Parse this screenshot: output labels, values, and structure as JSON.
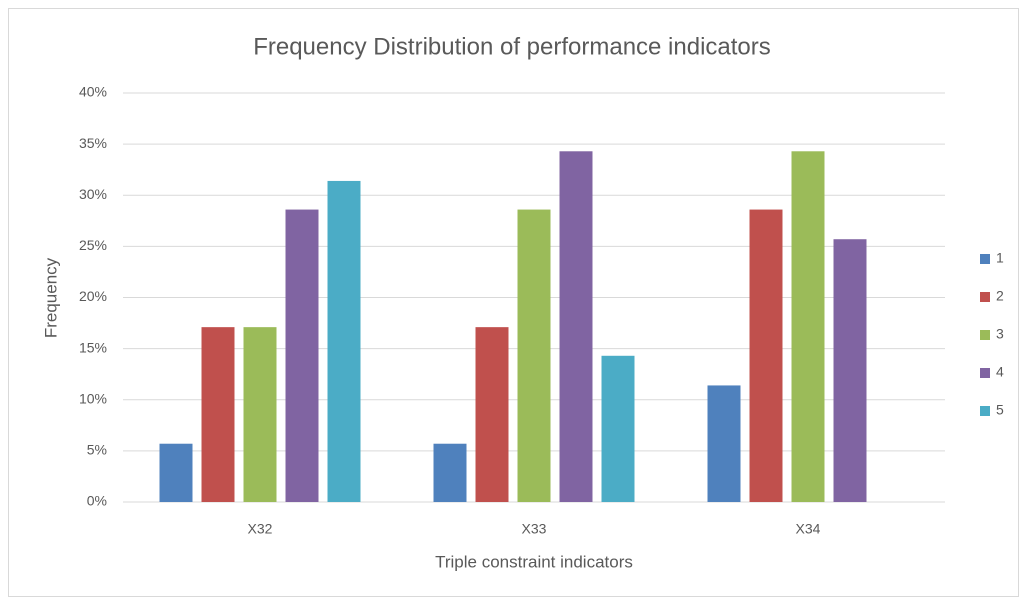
{
  "chart_data": {
    "type": "bar",
    "title": "Frequency Distribution of performance indicators",
    "xlabel": "Triple constraint indicators",
    "ylabel": "Frequency",
    "categories": [
      "X32",
      "X33",
      "X34"
    ],
    "series": [
      {
        "name": "1",
        "color": "#4f81bd",
        "values": [
          5.7,
          5.7,
          11.4
        ]
      },
      {
        "name": "2",
        "color": "#c0504d",
        "values": [
          17.1,
          17.1,
          28.6
        ]
      },
      {
        "name": "3",
        "color": "#9bbb59",
        "values": [
          17.1,
          28.6,
          34.3
        ]
      },
      {
        "name": "4",
        "color": "#8064a2",
        "values": [
          28.6,
          34.3,
          25.7
        ]
      },
      {
        "name": "5",
        "color": "#4bacc6",
        "values": [
          31.4,
          14.3,
          null
        ]
      }
    ],
    "ylim": [
      0,
      40
    ],
    "yticks": [
      {
        "value": 0,
        "label": "0%"
      },
      {
        "value": 5,
        "label": "5%"
      },
      {
        "value": 10,
        "label": "10%"
      },
      {
        "value": 15,
        "label": "15%"
      },
      {
        "value": 20,
        "label": "20%"
      },
      {
        "value": 25,
        "label": "25%"
      },
      {
        "value": 30,
        "label": "30%"
      },
      {
        "value": 35,
        "label": "35%"
      },
      {
        "value": 40,
        "label": "40%"
      }
    ],
    "grid": true,
    "legend": "right"
  }
}
